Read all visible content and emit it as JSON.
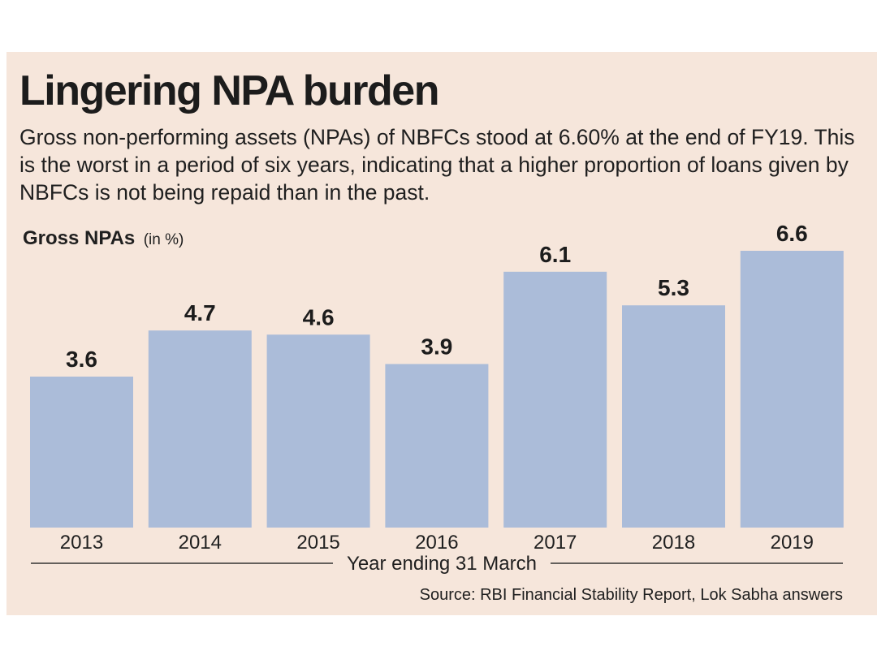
{
  "chart_data": {
    "type": "bar",
    "title": "Lingering NPA burden",
    "subtitle": "Gross non-performing assets (NPAs) of NBFCs stood at 6.60% at the end of FY19. This is the worst in a period of six years, indicating that a higher proportion of loans given by NBFCs is not being repaid than in the past.",
    "ylabel": "Gross NPAs",
    "ylabel_unit": "(in %)",
    "xlabel": "Year ending 31 March",
    "categories": [
      "2013",
      "2014",
      "2015",
      "2016",
      "2017",
      "2018",
      "2019"
    ],
    "values": [
      3.6,
      4.7,
      4.6,
      3.9,
      6.1,
      5.3,
      6.6
    ],
    "data_labels": [
      "3.6",
      "4.7",
      "4.6",
      "3.9",
      "6.1",
      "5.3",
      "6.6"
    ],
    "ylim": [
      0,
      6.6
    ],
    "grid": false,
    "bar_color": "#abbcd9",
    "source": "Source: RBI Financial Stability Report, Lok Sabha answers"
  },
  "colors": {
    "background": "#f6e6db",
    "text": "#1f1f1f",
    "axis_line": "#333333"
  }
}
